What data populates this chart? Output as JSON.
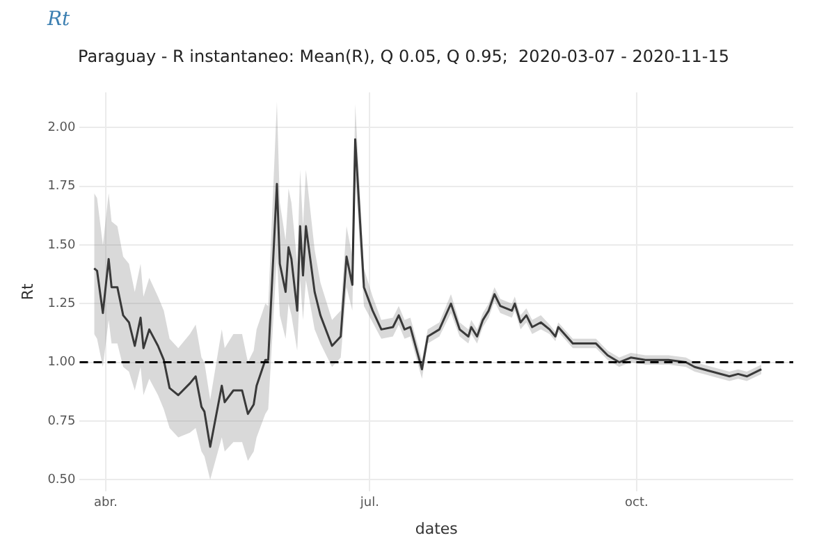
{
  "chart_data": {
    "type": "line",
    "title": "Rt",
    "subtitle": "Paraguay - R instantaneo: Mean(R), Q 0.05, Q 0.95;  2020-03-07 - 2020-11-15",
    "xlabel": "dates",
    "ylabel": "Rt",
    "x": [
      "2020-03-28",
      "2020-03-29",
      "2020-03-31",
      "2020-04-02",
      "2020-04-03",
      "2020-04-05",
      "2020-04-07",
      "2020-04-09",
      "2020-04-11",
      "2020-04-13",
      "2020-04-14",
      "2020-04-16",
      "2020-04-19",
      "2020-04-21",
      "2020-04-23",
      "2020-04-26",
      "2020-04-30",
      "2020-05-02",
      "2020-05-04",
      "2020-05-05",
      "2020-05-07",
      "2020-05-11",
      "2020-05-12",
      "2020-05-15",
      "2020-05-18",
      "2020-05-20",
      "2020-05-22",
      "2020-05-23",
      "2020-05-26",
      "2020-05-27",
      "2020-05-30",
      "2020-05-31",
      "2020-06-02",
      "2020-06-03",
      "2020-06-04",
      "2020-06-06",
      "2020-06-07",
      "2020-06-08",
      "2020-06-09",
      "2020-06-12",
      "2020-06-14",
      "2020-06-18",
      "2020-06-21",
      "2020-06-23",
      "2020-06-25",
      "2020-06-26",
      "2020-06-29",
      "2020-07-02",
      "2020-07-05",
      "2020-07-09",
      "2020-07-11",
      "2020-07-13",
      "2020-07-15",
      "2020-07-19",
      "2020-07-21",
      "2020-07-25",
      "2020-07-29",
      "2020-08-01",
      "2020-08-04",
      "2020-08-05",
      "2020-08-07",
      "2020-08-09",
      "2020-08-11",
      "2020-08-13",
      "2020-08-15",
      "2020-08-19",
      "2020-08-20",
      "2020-08-22",
      "2020-08-24",
      "2020-08-26",
      "2020-08-29",
      "2020-09-01",
      "2020-09-03",
      "2020-09-04",
      "2020-09-09",
      "2020-09-13",
      "2020-09-17",
      "2020-09-21",
      "2020-09-25",
      "2020-09-29",
      "2020-10-04",
      "2020-10-12",
      "2020-10-18",
      "2020-10-21",
      "2020-10-27",
      "2020-11-02",
      "2020-11-05",
      "2020-11-08",
      "2020-11-13"
    ],
    "series": [
      {
        "color": "#1a1a1a",
        "values": [
          1.4,
          1.39,
          1.21,
          1.44,
          1.32,
          1.32,
          1.2,
          1.17,
          1.07,
          1.19,
          1.06,
          1.14,
          1.07,
          1.01,
          0.89,
          0.86,
          0.91,
          0.94,
          0.81,
          0.79,
          0.64,
          0.9,
          0.83,
          0.88,
          0.88,
          0.78,
          0.82,
          0.9,
          1.01,
          1.01,
          1.76,
          1.42,
          1.3,
          1.49,
          1.44,
          1.22,
          1.58,
          1.37,
          1.58,
          1.3,
          1.2,
          1.07,
          1.11,
          1.45,
          1.33,
          1.95,
          1.32,
          1.22,
          1.14,
          1.15,
          1.2,
          1.14,
          1.15,
          0.97,
          1.11,
          1.14,
          1.25,
          1.14,
          1.11,
          1.15,
          1.11,
          1.18,
          1.22,
          1.29,
          1.24,
          1.22,
          1.25,
          1.17,
          1.2,
          1.15,
          1.17,
          1.14,
          1.11,
          1.15,
          1.08,
          1.08,
          1.08,
          1.03,
          1.0,
          1.02,
          1.01,
          1.01,
          1.0,
          0.98,
          0.96,
          0.94,
          0.95,
          0.94,
          0.97
        ],
        "lower": [
          1.12,
          1.1,
          0.98,
          1.18,
          1.08,
          1.08,
          0.98,
          0.96,
          0.88,
          0.98,
          0.86,
          0.93,
          0.86,
          0.8,
          0.72,
          0.68,
          0.7,
          0.72,
          0.62,
          0.6,
          0.5,
          0.68,
          0.62,
          0.66,
          0.66,
          0.58,
          0.62,
          0.68,
          0.78,
          0.8,
          1.45,
          1.2,
          1.1,
          1.25,
          1.2,
          1.05,
          1.35,
          1.18,
          1.35,
          1.14,
          1.08,
          0.98,
          1.02,
          1.32,
          1.22,
          1.8,
          1.24,
          1.17,
          1.1,
          1.11,
          1.16,
          1.1,
          1.11,
          0.93,
          1.08,
          1.11,
          1.21,
          1.11,
          1.08,
          1.12,
          1.08,
          1.15,
          1.19,
          1.26,
          1.21,
          1.19,
          1.22,
          1.14,
          1.17,
          1.12,
          1.14,
          1.12,
          1.09,
          1.13,
          1.06,
          1.06,
          1.06,
          1.01,
          0.98,
          1.0,
          0.99,
          0.99,
          0.98,
          0.96,
          0.94,
          0.92,
          0.93,
          0.92,
          0.95
        ],
        "upper": [
          1.72,
          1.7,
          1.5,
          1.72,
          1.6,
          1.58,
          1.45,
          1.42,
          1.3,
          1.42,
          1.28,
          1.36,
          1.28,
          1.22,
          1.1,
          1.06,
          1.12,
          1.16,
          1.02,
          1.0,
          0.84,
          1.14,
          1.06,
          1.12,
          1.12,
          1.0,
          1.05,
          1.14,
          1.25,
          1.24,
          2.11,
          1.68,
          1.52,
          1.74,
          1.68,
          1.42,
          1.82,
          1.58,
          1.82,
          1.48,
          1.34,
          1.18,
          1.22,
          1.58,
          1.45,
          2.1,
          1.4,
          1.28,
          1.18,
          1.19,
          1.24,
          1.18,
          1.19,
          1.01,
          1.14,
          1.17,
          1.29,
          1.17,
          1.14,
          1.18,
          1.14,
          1.21,
          1.25,
          1.32,
          1.27,
          1.25,
          1.28,
          1.2,
          1.23,
          1.18,
          1.2,
          1.16,
          1.13,
          1.17,
          1.1,
          1.1,
          1.1,
          1.05,
          1.02,
          1.04,
          1.03,
          1.03,
          1.02,
          1.0,
          0.98,
          0.96,
          0.97,
          0.96,
          0.99
        ]
      }
    ],
    "xlim": [
      "2020-03-23",
      "2020-11-24"
    ],
    "xticks": [
      {
        "value": "2020-04-01",
        "label": "abr."
      },
      {
        "value": "2020-07-01",
        "label": "jul."
      },
      {
        "value": "2020-10-01",
        "label": "oct."
      }
    ],
    "ylim": [
      0.45,
      2.15
    ],
    "yticks": [
      {
        "value": 0.5,
        "label": "0.50"
      },
      {
        "value": 0.75,
        "label": "0.75"
      },
      {
        "value": 1.0,
        "label": "1.00"
      },
      {
        "value": 1.25,
        "label": "1.25"
      },
      {
        "value": 1.5,
        "label": "1.50"
      },
      {
        "value": 1.75,
        "label": "1.75"
      },
      {
        "value": 2.0,
        "label": "2.00"
      }
    ],
    "ref_lines": [
      {
        "axis": "y",
        "value": 1.0,
        "color": "#000000",
        "line_style": "dashed"
      }
    ],
    "grid": true,
    "legend": false,
    "marker": "none",
    "line_style": "solid"
  }
}
